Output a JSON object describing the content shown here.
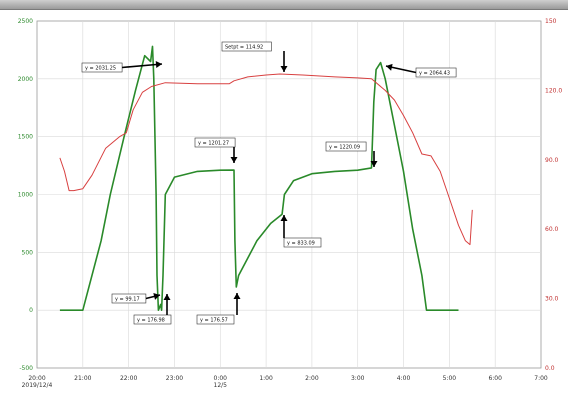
{
  "chart_data": {
    "type": "line",
    "title": "",
    "xlabel": "",
    "ylabel_left": "",
    "ylabel_right": "",
    "x_ticks": [
      "20:00\n2019/12/4",
      "21:00",
      "22:00",
      "23:00",
      "0:00\n12/5",
      "1:00",
      "2:00",
      "3:00",
      "4:00",
      "5:00",
      "6:00",
      "7:00"
    ],
    "y_left_ticks": [
      "2500",
      "2000",
      "1500",
      "1000",
      "500",
      "0",
      "-500"
    ],
    "y_right_ticks": [
      "150",
      "120.0",
      "90.0",
      "60.0",
      "30.0",
      "0.0"
    ],
    "ylim_left": [
      -500,
      2500
    ],
    "ylim_right": [
      -30,
      150
    ],
    "grid": true,
    "series": [
      {
        "name": "",
        "color": "#2a8a2a",
        "axis": "left",
        "points": [
          [
            0.5,
            0
          ],
          [
            1.0,
            0
          ],
          [
            1.4,
            600
          ],
          [
            1.6,
            1000
          ],
          [
            1.9,
            1500
          ],
          [
            2.15,
            1900
          ],
          [
            2.35,
            2200
          ],
          [
            2.48,
            2150
          ],
          [
            2.52,
            2280
          ],
          [
            2.55,
            2000
          ],
          [
            2.6,
            1000
          ],
          [
            2.62,
            300
          ],
          [
            2.65,
            0
          ],
          [
            2.7,
            50
          ],
          [
            2.72,
            0
          ],
          [
            2.75,
            300
          ],
          [
            2.8,
            1000
          ],
          [
            3.0,
            1150
          ],
          [
            3.5,
            1200
          ],
          [
            4.0,
            1210
          ],
          [
            4.3,
            1211
          ],
          [
            4.32,
            600
          ],
          [
            4.35,
            200
          ],
          [
            4.4,
            300
          ],
          [
            4.8,
            600
          ],
          [
            5.1,
            750
          ],
          [
            5.35,
            830
          ],
          [
            5.4,
            1000
          ],
          [
            5.6,
            1120
          ],
          [
            6.0,
            1180
          ],
          [
            6.5,
            1200
          ],
          [
            7.0,
            1210
          ],
          [
            7.3,
            1230
          ],
          [
            7.35,
            1800
          ],
          [
            7.4,
            2080
          ],
          [
            7.5,
            2140
          ],
          [
            7.6,
            2000
          ],
          [
            7.8,
            1600
          ],
          [
            8.0,
            1200
          ],
          [
            8.2,
            700
          ],
          [
            8.4,
            300
          ],
          [
            8.5,
            0
          ],
          [
            9.2,
            0
          ]
        ]
      },
      {
        "name": "",
        "color": "#d84040",
        "axis": "right",
        "points": [
          [
            0.5,
            79
          ],
          [
            0.6,
            72
          ],
          [
            0.7,
            62
          ],
          [
            0.8,
            62
          ],
          [
            1.0,
            63
          ],
          [
            1.2,
            70
          ],
          [
            1.5,
            84
          ],
          [
            1.8,
            90
          ],
          [
            1.95,
            92
          ],
          [
            2.1,
            104
          ],
          [
            2.3,
            113
          ],
          [
            2.5,
            116
          ],
          [
            2.8,
            118
          ],
          [
            3.5,
            117.5
          ],
          [
            4.2,
            117.5
          ],
          [
            4.3,
            119
          ],
          [
            4.6,
            121
          ],
          [
            5.0,
            122
          ],
          [
            5.3,
            122.5
          ],
          [
            5.8,
            122
          ],
          [
            6.5,
            121
          ],
          [
            7.0,
            120.5
          ],
          [
            7.3,
            120
          ],
          [
            7.6,
            114
          ],
          [
            7.8,
            109
          ],
          [
            8.0,
            101
          ],
          [
            8.2,
            92
          ],
          [
            8.4,
            81
          ],
          [
            8.6,
            80
          ],
          [
            8.8,
            72
          ],
          [
            9.0,
            58
          ],
          [
            9.2,
            44
          ],
          [
            9.35,
            36
          ],
          [
            9.45,
            34
          ],
          [
            9.5,
            52
          ]
        ]
      }
    ],
    "annotations": [
      "y = 2031.25",
      "Setpt = 114.92",
      "y = 2064.43",
      "y = 1201.27",
      "y = 1220.09",
      "y = 99.17",
      "y = 176.98",
      "y = 176.57",
      "y = 833.09"
    ]
  }
}
